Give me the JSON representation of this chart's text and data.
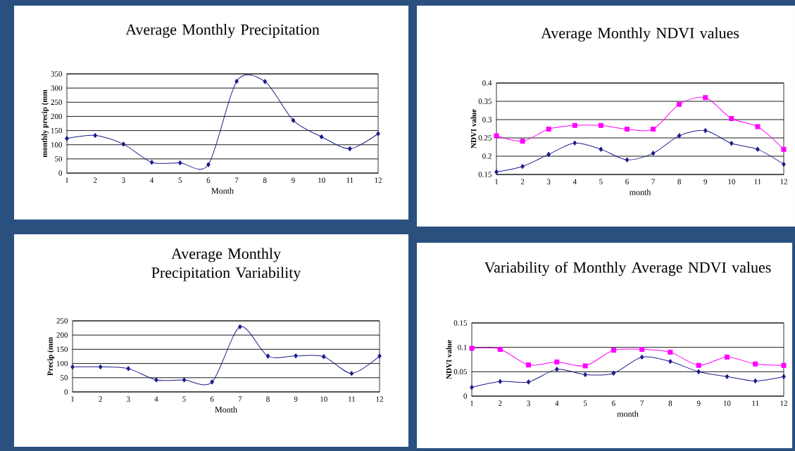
{
  "chart_data": [
    {
      "type": "line",
      "title": "Average Monthly Precipitation",
      "xlabel": "Month",
      "ylabel": "monthly precip (mm",
      "categories": [
        "1",
        "2",
        "3",
        "4",
        "5",
        "6",
        "7",
        "8",
        "9",
        "10",
        "11",
        "12"
      ],
      "ylim": [
        0,
        350
      ],
      "yticks": [
        0,
        50,
        100,
        150,
        200,
        250,
        300,
        350
      ],
      "grid": "y",
      "series": [
        {
          "color": "#1c1c8c",
          "marker": "diamond",
          "values": [
            122,
            133,
            102,
            38,
            36,
            30,
            324,
            323,
            186,
            128,
            86,
            139
          ]
        }
      ]
    },
    {
      "type": "line",
      "title": "Average Monthly NDVI values",
      "xlabel": "month",
      "ylabel": "NDVI value",
      "categories": [
        "1",
        "2",
        "3",
        "4",
        "5",
        "6",
        "7",
        "8",
        "9",
        "10",
        "11",
        "12"
      ],
      "ylim": [
        0.15,
        0.4
      ],
      "yticks": [
        0.15,
        0.2,
        0.25,
        0.3,
        0.35,
        0.4
      ],
      "grid": "y",
      "series": [
        {
          "color": "#1c1c8c",
          "marker": "diamond",
          "values": [
            0.157,
            0.172,
            0.205,
            0.236,
            0.219,
            0.19,
            0.208,
            0.256,
            0.27,
            0.235,
            0.219,
            0.178
          ]
        },
        {
          "color": "#ff00ff",
          "marker": "square",
          "values": [
            0.256,
            0.241,
            0.274,
            0.284,
            0.284,
            0.274,
            0.274,
            0.342,
            0.36,
            0.303,
            0.281,
            0.219
          ]
        }
      ]
    },
    {
      "type": "line",
      "title": "Average Monthly Precipitation Variability",
      "xlabel": "Month",
      "ylabel": "Precip (mm",
      "categories": [
        "1",
        "2",
        "3",
        "4",
        "5",
        "6",
        "7",
        "8",
        "9",
        "10",
        "11",
        "12"
      ],
      "ylim": [
        0,
        250
      ],
      "yticks": [
        0,
        50,
        100,
        150,
        200,
        250
      ],
      "grid": "y",
      "series": [
        {
          "color": "#1c1c8c",
          "marker": "diamond",
          "values": [
            88,
            88,
            82,
            42,
            42,
            35,
            229,
            126,
            127,
            124,
            65,
            126
          ]
        }
      ]
    },
    {
      "type": "line",
      "title": "Variability of Monthly Average NDVI values",
      "xlabel": "month",
      "ylabel": "NDVI value",
      "categories": [
        "1",
        "2",
        "3",
        "4",
        "5",
        "6",
        "7",
        "8",
        "9",
        "10",
        "11",
        "12"
      ],
      "ylim": [
        0,
        0.15
      ],
      "yticks": [
        0,
        0.05,
        0.1,
        0.15
      ],
      "grid": "y",
      "series": [
        {
          "color": "#1c1c8c",
          "marker": "diamond",
          "values": [
            0.018,
            0.03,
            0.029,
            0.055,
            0.044,
            0.047,
            0.08,
            0.071,
            0.05,
            0.04,
            0.031,
            0.04
          ]
        },
        {
          "color": "#ff00ff",
          "marker": "square",
          "values": [
            0.098,
            0.096,
            0.064,
            0.07,
            0.062,
            0.094,
            0.096,
            0.09,
            0.063,
            0.08,
            0.066,
            0.063
          ]
        }
      ]
    }
  ]
}
